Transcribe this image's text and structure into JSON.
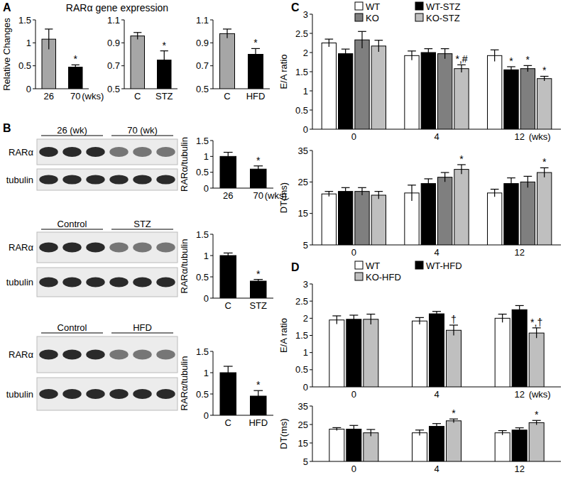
{
  "chart_data": [
    {
      "type": "bar",
      "panel": "A",
      "title": "RARα gene expression",
      "y_label": "Relative Changes",
      "x_label": "(wks)",
      "categories": [
        "26",
        "70"
      ],
      "values": [
        1.08,
        0.47
      ],
      "errors": [
        0.22,
        0.05
      ],
      "annotations": [
        null,
        "*"
      ],
      "colors": [
        "#a6a6a6",
        "#000000"
      ],
      "ylim": [
        0,
        1.5
      ],
      "yticks": [
        0,
        0.5,
        1,
        1.5
      ]
    },
    {
      "type": "bar",
      "categories": [
        "C",
        "STZ"
      ],
      "values": [
        0.96,
        0.75
      ],
      "errors": [
        0.03,
        0.08
      ],
      "annotations": [
        null,
        "*"
      ],
      "colors": [
        "#a6a6a6",
        "#000000"
      ],
      "ylim": [
        0.5,
        1.1
      ],
      "yticks": [
        0.5,
        0.7,
        0.9,
        1.1
      ]
    },
    {
      "type": "bar",
      "categories": [
        "C",
        "HFD"
      ],
      "values": [
        0.98,
        0.8
      ],
      "errors": [
        0.04,
        0.05
      ],
      "annotations": [
        null,
        "*"
      ],
      "colors": [
        "#a6a6a6",
        "#000000"
      ],
      "ylim": [
        0.5,
        1.1
      ],
      "yticks": [
        0.5,
        0.7,
        0.9,
        1.1
      ]
    },
    {
      "type": "bar",
      "panel": "B",
      "y_label": "RARα/tubulin",
      "x_label": "(wks)",
      "categories": [
        "26",
        "70"
      ],
      "values": [
        1.0,
        0.6
      ],
      "errors": [
        0.13,
        0.1
      ],
      "annotations": [
        null,
        "*"
      ],
      "colors": [
        "#000000",
        "#000000"
      ],
      "ylim": [
        0,
        1.5
      ],
      "yticks": [
        0,
        0.5,
        1,
        1.5
      ]
    },
    {
      "type": "bar",
      "y_label": "RARα/tubulin",
      "categories": [
        "C",
        "STZ"
      ],
      "values": [
        1.0,
        0.4
      ],
      "errors": [
        0.06,
        0.04
      ],
      "annotations": [
        null,
        "*"
      ],
      "colors": [
        "#000000",
        "#000000"
      ],
      "ylim": [
        0,
        1.5
      ],
      "yticks": [
        0,
        0.5,
        1,
        1.5
      ]
    },
    {
      "type": "bar",
      "y_label": "RARα/tubulin",
      "categories": [
        "C",
        "HFD"
      ],
      "values": [
        1.0,
        0.45
      ],
      "errors": [
        0.15,
        0.13
      ],
      "annotations": [
        null,
        "*"
      ],
      "colors": [
        "#000000",
        "#000000"
      ],
      "ylim": [
        0,
        1.5
      ],
      "yticks": [
        0,
        0.5,
        1,
        1.5
      ]
    },
    {
      "type": "bar",
      "panel": "C",
      "y_label": "E/A ratio",
      "x_label": "(wks)",
      "legend": "top",
      "categories": [
        "0",
        "4",
        "12"
      ],
      "ylim": [
        0,
        3
      ],
      "yticks": [
        0,
        0.5,
        1,
        1.5,
        2,
        2.5,
        3
      ],
      "series": [
        {
          "name": "WT",
          "color": "#ffffff",
          "values": [
            2.25,
            1.92,
            1.92
          ],
          "errors": [
            0.1,
            0.12,
            0.15
          ],
          "annotations": [
            null,
            null,
            null
          ]
        },
        {
          "name": "WT-STZ",
          "color": "#000000",
          "values": [
            1.97,
            2.0,
            1.55
          ],
          "errors": [
            0.12,
            0.1,
            0.08
          ],
          "annotations": [
            null,
            null,
            "*"
          ]
        },
        {
          "name": "KO",
          "color": "#7f7f7f",
          "values": [
            2.33,
            1.97,
            1.58
          ],
          "errors": [
            0.22,
            0.13,
            0.08
          ],
          "annotations": [
            null,
            null,
            "*"
          ]
        },
        {
          "name": "KO-STZ",
          "color": "#bfbfbf",
          "values": [
            2.17,
            1.58,
            1.32
          ],
          "errors": [
            0.15,
            0.1,
            0.06
          ],
          "annotations": [
            null,
            "*,#",
            "*"
          ]
        }
      ]
    },
    {
      "type": "bar",
      "y_label": "DT(ms)",
      "categories": [
        "0",
        "4",
        "12"
      ],
      "ylim": [
        5,
        35
      ],
      "yticks": [
        5,
        15,
        25,
        35
      ],
      "series": [
        {
          "color": "#ffffff",
          "values": [
            21.2,
            21.5,
            21.5
          ],
          "errors": [
            0.8,
            2.5,
            1.2
          ],
          "annotations": [
            null,
            null,
            null
          ]
        },
        {
          "color": "#000000",
          "values": [
            22.0,
            24.5,
            24.5
          ],
          "errors": [
            1.2,
            1.5,
            1.8
          ],
          "annotations": [
            null,
            null,
            null
          ]
        },
        {
          "color": "#7f7f7f",
          "values": [
            22.0,
            26.5,
            25.0
          ],
          "errors": [
            1.2,
            1.5,
            1.8
          ],
          "annotations": [
            null,
            null,
            null
          ]
        },
        {
          "color": "#bfbfbf",
          "values": [
            20.8,
            29.0,
            28.0
          ],
          "errors": [
            1.2,
            1.5,
            1.5
          ],
          "annotations": [
            null,
            "*",
            "*"
          ]
        }
      ]
    },
    {
      "type": "bar",
      "panel": "D",
      "y_label": "E/A ratio",
      "x_label": "(wks)",
      "legend": "top",
      "categories": [
        "0",
        "4",
        "12"
      ],
      "ylim": [
        0,
        3
      ],
      "yticks": [
        0,
        0.5,
        1,
        1.5,
        2,
        2.5,
        3
      ],
      "series": [
        {
          "name": "WT",
          "color": "#ffffff",
          "values": [
            1.95,
            1.92,
            2.0
          ],
          "errors": [
            0.12,
            0.1,
            0.12
          ],
          "annotations": [
            null,
            null,
            null
          ]
        },
        {
          "name": "WT-HFD",
          "color": "#000000",
          "values": [
            1.97,
            2.13,
            2.25
          ],
          "errors": [
            0.12,
            0.07,
            0.12
          ],
          "annotations": [
            null,
            null,
            null
          ]
        },
        {
          "name": "KO-HFD",
          "color": "#bfbfbf",
          "values": [
            1.97,
            1.65,
            1.57
          ],
          "errors": [
            0.15,
            0.15,
            0.15
          ],
          "annotations": [
            null,
            "†",
            "*,†"
          ]
        }
      ]
    },
    {
      "type": "bar",
      "y_label": "DT(ms)",
      "categories": [
        "0",
        "4",
        "12"
      ],
      "ylim": [
        5,
        35
      ],
      "yticks": [
        5,
        15,
        25,
        35
      ],
      "series": [
        {
          "color": "#ffffff",
          "values": [
            22.5,
            20.5,
            20.5
          ],
          "errors": [
            0.8,
            1.5,
            1.2
          ],
          "annotations": [
            null,
            null,
            null
          ]
        },
        {
          "color": "#000000",
          "values": [
            22.5,
            24.0,
            22.0
          ],
          "errors": [
            2.0,
            1.5,
            1.2
          ],
          "annotations": [
            null,
            null,
            null
          ]
        },
        {
          "color": "#bfbfbf",
          "values": [
            20.5,
            27.0,
            26.0
          ],
          "errors": [
            1.8,
            1.0,
            1.2
          ],
          "annotations": [
            null,
            "*",
            "*"
          ]
        }
      ]
    }
  ],
  "blots": [
    {
      "groups": [
        "26 (wk)",
        "70 (wk)"
      ],
      "rows": [
        "RARα",
        "tubulin"
      ]
    },
    {
      "groups": [
        "Control",
        "STZ"
      ],
      "rows": [
        "RARα",
        "tubulin"
      ]
    },
    {
      "groups": [
        "Control",
        "HFD"
      ],
      "rows": [
        "RARα",
        "tubulin"
      ]
    }
  ]
}
